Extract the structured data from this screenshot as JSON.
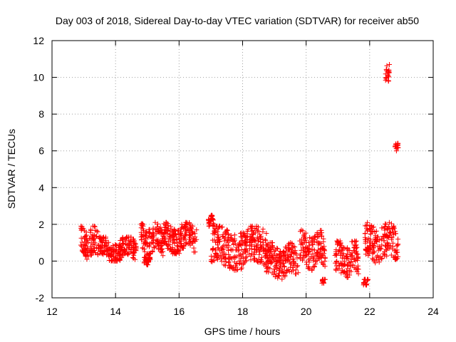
{
  "chart_data": {
    "type": "scatter",
    "title": "Day 003 of 2018, Sidereal Day-to-day VTEC variation (SDTVAR) for receiver ab50",
    "xlabel": "GPS time / hours",
    "ylabel": "SDTVAR / TECUs",
    "xlim": [
      12,
      24
    ],
    "ylim": [
      -2,
      12
    ],
    "x_ticks": [
      "12",
      "14",
      "16",
      "18",
      "20",
      "22",
      "24"
    ],
    "y_ticks": [
      "-2",
      "0",
      "2",
      "4",
      "6",
      "8",
      "10",
      "12"
    ],
    "grid": true,
    "marker": "+",
    "colors": {
      "series": "#ff0000",
      "grid": "#a0a0a0",
      "axis": "#000000"
    },
    "series": [
      {
        "name": "SDTVAR",
        "segments": [
          {
            "x0": 12.9,
            "x1": 13.45,
            "ymin": 0.1,
            "ymax": 1.9,
            "center": 0.8
          },
          {
            "x0": 13.45,
            "x1": 14.65,
            "ymin": 0.0,
            "ymax": 1.3,
            "center": 0.6
          },
          {
            "x0": 14.8,
            "x1": 15.5,
            "ymin": 0.3,
            "ymax": 2.1,
            "center": 1.3
          },
          {
            "x0": 14.9,
            "x1": 15.1,
            "ymin": -0.2,
            "ymax": 0.2,
            "center": 0.0
          },
          {
            "x0": 15.5,
            "x1": 16.55,
            "ymin": 0.4,
            "ymax": 2.1,
            "center": 1.2
          },
          {
            "x0": 16.9,
            "x1": 17.1,
            "ymin": 1.9,
            "ymax": 2.5,
            "center": 2.2
          },
          {
            "x0": 17.0,
            "x1": 18.75,
            "ymin": -0.5,
            "ymax": 1.9,
            "center": 0.5
          },
          {
            "x0": 18.7,
            "x1": 19.75,
            "ymin": -1.0,
            "ymax": 1.0,
            "center": 0.3
          },
          {
            "x0": 19.8,
            "x1": 20.6,
            "ymin": -0.5,
            "ymax": 1.7,
            "center": 0.4
          },
          {
            "x0": 20.5,
            "x1": 20.6,
            "ymin": -1.2,
            "ymax": -1.0,
            "center": -1.1
          },
          {
            "x0": 20.9,
            "x1": 21.65,
            "ymin": -0.9,
            "ymax": 1.1,
            "center": 0.2
          },
          {
            "x0": 21.8,
            "x1": 21.95,
            "ymin": -1.3,
            "ymax": -1.0,
            "center": -1.15
          },
          {
            "x0": 21.85,
            "x1": 22.9,
            "ymin": -0.1,
            "ymax": 2.1,
            "center": 1.0
          },
          {
            "x0": 22.5,
            "x1": 22.62,
            "ymin": 9.8,
            "ymax": 10.7,
            "center": 10.2
          },
          {
            "x0": 22.8,
            "x1": 22.9,
            "ymin": 6.0,
            "ymax": 6.4,
            "center": 6.2
          }
        ]
      }
    ]
  }
}
